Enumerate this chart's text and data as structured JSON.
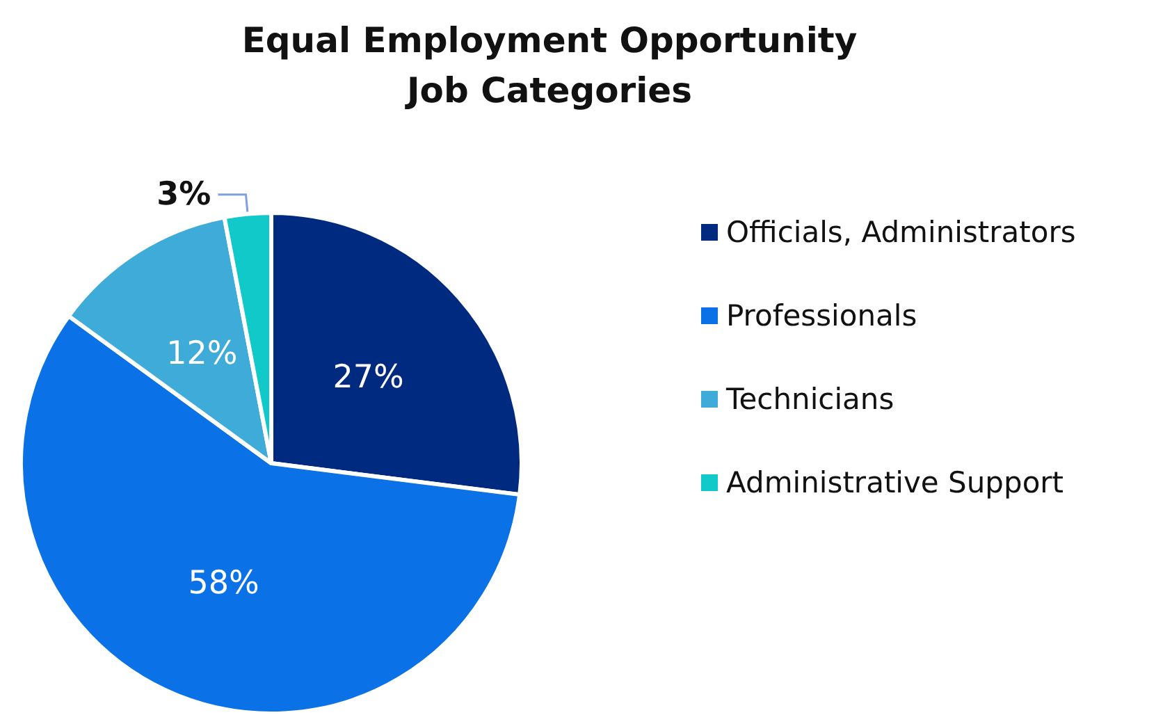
{
  "chart_data": {
    "type": "pie",
    "title": "Equal Employment Opportunity\nJob Categories",
    "categories": [
      "Officials, Administrators",
      "Professionals",
      "Technicians",
      "Administrative Support"
    ],
    "values": [
      27,
      58,
      12,
      3
    ],
    "colors": [
      "#002a7f",
      "#0a72e6",
      "#3eabd8",
      "#12c9c9"
    ],
    "value_labels": [
      "27%",
      "58%",
      "12%",
      "3%"
    ],
    "legend": "right"
  }
}
